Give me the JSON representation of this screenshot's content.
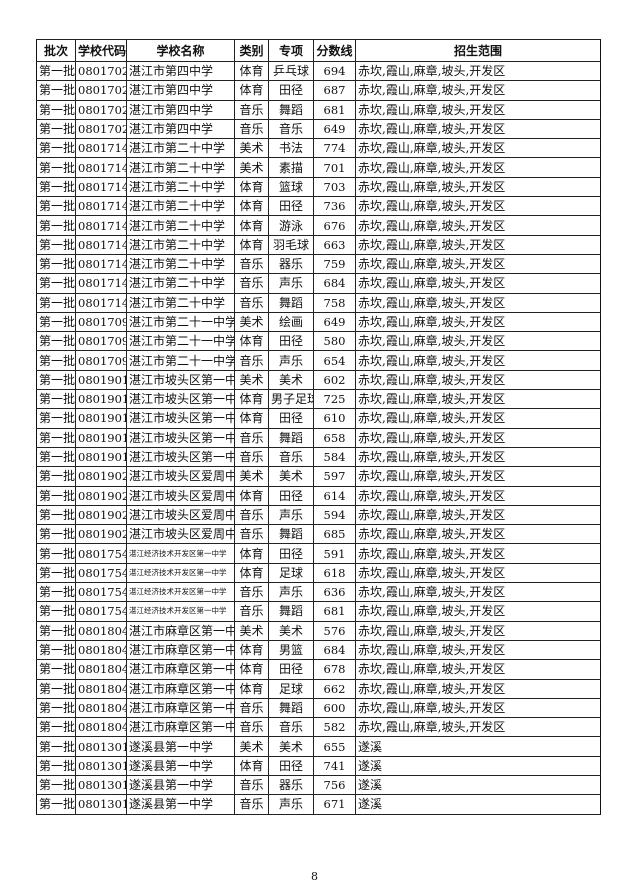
{
  "headers": [
    "批次",
    "学校代码",
    "学校名称",
    "类别",
    "专项",
    "分数线",
    "招生范围"
  ],
  "rows": [
    [
      "第一批",
      "0801702",
      "湛江市第四中学",
      "体育",
      "乒乓球",
      "694",
      "赤坎,霞山,麻章,坡头,开发区"
    ],
    [
      "第一批",
      "0801702",
      "湛江市第四中学",
      "体育",
      "田径",
      "687",
      "赤坎,霞山,麻章,坡头,开发区"
    ],
    [
      "第一批",
      "0801702",
      "湛江市第四中学",
      "音乐",
      "舞蹈",
      "681",
      "赤坎,霞山,麻章,坡头,开发区"
    ],
    [
      "第一批",
      "0801702",
      "湛江市第四中学",
      "音乐",
      "音乐",
      "649",
      "赤坎,霞山,麻章,坡头,开发区"
    ],
    [
      "第一批",
      "0801714",
      "湛江市第二十中学",
      "美术",
      "书法",
      "774",
      "赤坎,霞山,麻章,坡头,开发区"
    ],
    [
      "第一批",
      "0801714",
      "湛江市第二十中学",
      "美术",
      "素描",
      "701",
      "赤坎,霞山,麻章,坡头,开发区"
    ],
    [
      "第一批",
      "0801714",
      "湛江市第二十中学",
      "体育",
      "篮球",
      "703",
      "赤坎,霞山,麻章,坡头,开发区"
    ],
    [
      "第一批",
      "0801714",
      "湛江市第二十中学",
      "体育",
      "田径",
      "736",
      "赤坎,霞山,麻章,坡头,开发区"
    ],
    [
      "第一批",
      "0801714",
      "湛江市第二十中学",
      "体育",
      "游泳",
      "676",
      "赤坎,霞山,麻章,坡头,开发区"
    ],
    [
      "第一批",
      "0801714",
      "湛江市第二十中学",
      "体育",
      "羽毛球",
      "663",
      "赤坎,霞山,麻章,坡头,开发区"
    ],
    [
      "第一批",
      "0801714",
      "湛江市第二十中学",
      "音乐",
      "器乐",
      "759",
      "赤坎,霞山,麻章,坡头,开发区"
    ],
    [
      "第一批",
      "0801714",
      "湛江市第二十中学",
      "音乐",
      "声乐",
      "684",
      "赤坎,霞山,麻章,坡头,开发区"
    ],
    [
      "第一批",
      "0801714",
      "湛江市第二十中学",
      "音乐",
      "舞蹈",
      "758",
      "赤坎,霞山,麻章,坡头,开发区"
    ],
    [
      "第一批",
      "0801709",
      "湛江市第二十一中学",
      "美术",
      "绘画",
      "649",
      "赤坎,霞山,麻章,坡头,开发区"
    ],
    [
      "第一批",
      "0801709",
      "湛江市第二十一中学",
      "体育",
      "田径",
      "580",
      "赤坎,霞山,麻章,坡头,开发区"
    ],
    [
      "第一批",
      "0801709",
      "湛江市第二十一中学",
      "音乐",
      "声乐",
      "654",
      "赤坎,霞山,麻章,坡头,开发区"
    ],
    [
      "第一批",
      "0801901",
      "湛江市坡头区第一中学",
      "美术",
      "美术",
      "602",
      "赤坎,霞山,麻章,坡头,开发区"
    ],
    [
      "第一批",
      "0801901",
      "湛江市坡头区第一中学",
      "体育",
      "男子足球",
      "725",
      "赤坎,霞山,麻章,坡头,开发区"
    ],
    [
      "第一批",
      "0801901",
      "湛江市坡头区第一中学",
      "体育",
      "田径",
      "610",
      "赤坎,霞山,麻章,坡头,开发区"
    ],
    [
      "第一批",
      "0801901",
      "湛江市坡头区第一中学",
      "音乐",
      "舞蹈",
      "658",
      "赤坎,霞山,麻章,坡头,开发区"
    ],
    [
      "第一批",
      "0801901",
      "湛江市坡头区第一中学",
      "音乐",
      "音乐",
      "584",
      "赤坎,霞山,麻章,坡头,开发区"
    ],
    [
      "第一批",
      "0801902",
      "湛江市坡头区爱周中学",
      "美术",
      "美术",
      "597",
      "赤坎,霞山,麻章,坡头,开发区"
    ],
    [
      "第一批",
      "0801902",
      "湛江市坡头区爱周中学",
      "体育",
      "田径",
      "614",
      "赤坎,霞山,麻章,坡头,开发区"
    ],
    [
      "第一批",
      "0801902",
      "湛江市坡头区爱周中学",
      "音乐",
      "声乐",
      "594",
      "赤坎,霞山,麻章,坡头,开发区"
    ],
    [
      "第一批",
      "0801902",
      "湛江市坡头区爱周中学",
      "音乐",
      "舞蹈",
      "685",
      "赤坎,霞山,麻章,坡头,开发区"
    ],
    [
      "第一批",
      "0801754",
      "湛江经济技术开发区第一中学",
      "体育",
      "田径",
      "591",
      "赤坎,霞山,麻章,坡头,开发区"
    ],
    [
      "第一批",
      "0801754",
      "湛江经济技术开发区第一中学",
      "体育",
      "足球",
      "618",
      "赤坎,霞山,麻章,坡头,开发区"
    ],
    [
      "第一批",
      "0801754",
      "湛江经济技术开发区第一中学",
      "音乐",
      "声乐",
      "636",
      "赤坎,霞山,麻章,坡头,开发区"
    ],
    [
      "第一批",
      "0801754",
      "湛江经济技术开发区第一中学",
      "音乐",
      "舞蹈",
      "681",
      "赤坎,霞山,麻章,坡头,开发区"
    ],
    [
      "第一批",
      "0801804",
      "湛江市麻章区第一中学",
      "美术",
      "美术",
      "576",
      "赤坎,霞山,麻章,坡头,开发区"
    ],
    [
      "第一批",
      "0801804",
      "湛江市麻章区第一中学",
      "体育",
      "男篮",
      "684",
      "赤坎,霞山,麻章,坡头,开发区"
    ],
    [
      "第一批",
      "0801804",
      "湛江市麻章区第一中学",
      "体育",
      "田径",
      "678",
      "赤坎,霞山,麻章,坡头,开发区"
    ],
    [
      "第一批",
      "0801804",
      "湛江市麻章区第一中学",
      "体育",
      "足球",
      "662",
      "赤坎,霞山,麻章,坡头,开发区"
    ],
    [
      "第一批",
      "0801804",
      "湛江市麻章区第一中学",
      "音乐",
      "舞蹈",
      "600",
      "赤坎,霞山,麻章,坡头,开发区"
    ],
    [
      "第一批",
      "0801804",
      "湛江市麻章区第一中学",
      "音乐",
      "音乐",
      "582",
      "赤坎,霞山,麻章,坡头,开发区"
    ],
    [
      "第一批",
      "0801301",
      "遂溪县第一中学",
      "美术",
      "美术",
      "655",
      "遂溪"
    ],
    [
      "第一批",
      "0801301",
      "遂溪县第一中学",
      "体育",
      "田径",
      "741",
      "遂溪"
    ],
    [
      "第一批",
      "0801301",
      "遂溪县第一中学",
      "音乐",
      "器乐",
      "756",
      "遂溪"
    ],
    [
      "第一批",
      "0801301",
      "遂溪县第一中学",
      "音乐",
      "声乐",
      "671",
      "遂溪"
    ]
  ],
  "page_number": "8"
}
